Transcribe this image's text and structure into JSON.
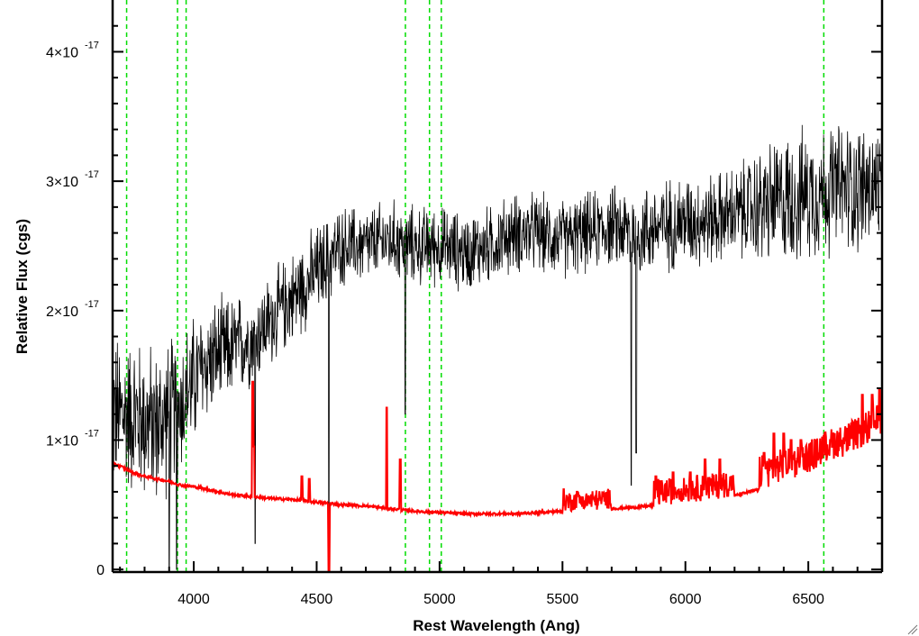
{
  "chart_data": {
    "type": "line",
    "title": "",
    "xlabel": "Rest Wavelength (Ang)",
    "ylabel": "Relative Flux (cgs)",
    "xlim": [
      3670,
      6800
    ],
    "ylim": [
      -2e-19,
      4.4e-17
    ],
    "x_ticks": [
      4000,
      4500,
      5000,
      5500,
      6000,
      6500
    ],
    "x_tick_labels": [
      "4000",
      "4500",
      "5000",
      "5500",
      "6000",
      "6500"
    ],
    "y_ticks": [
      0,
      1e-17,
      2e-17,
      3e-17,
      4e-17
    ],
    "y_tick_labels": [
      {
        "mantissa": "0",
        "exponent": ""
      },
      {
        "mantissa": "1×10",
        "exponent": "-17"
      },
      {
        "mantissa": "2×10",
        "exponent": "-17"
      },
      {
        "mantissa": "3×10",
        "exponent": "-17"
      },
      {
        "mantissa": "4×10",
        "exponent": "-17"
      }
    ],
    "reference_lines_x": [
      3727,
      3934,
      3969,
      4861,
      4959,
      5007,
      6563
    ],
    "series": [
      {
        "role": "spectrum",
        "color": "#000000",
        "x": [
          3680,
          3750,
          3850,
          3950,
          4050,
          4150,
          4250,
          4300,
          4400,
          4500,
          4600,
          4700,
          4800,
          4900,
          5000,
          5100,
          5200,
          5300,
          5400,
          5500,
          5600,
          5700,
          5800,
          5900,
          6000,
          6100,
          6200,
          6300,
          6400,
          6500,
          6600,
          6700,
          6800
        ],
        "y": [
          1.2e-17,
          1.2e-17,
          1.1e-17,
          1.3e-17,
          1.6e-17,
          1.7e-17,
          1.8e-17,
          1.9e-17,
          2.1e-17,
          2.3e-17,
          2.5e-17,
          2.5e-17,
          2.55e-17,
          2.5e-17,
          2.5e-17,
          2.45e-17,
          2.5e-17,
          2.6e-17,
          2.6e-17,
          2.55e-17,
          2.6e-17,
          2.65e-17,
          2.6e-17,
          2.65e-17,
          2.7e-17,
          2.7e-17,
          2.75e-17,
          2.8e-17,
          2.85e-17,
          2.9e-17,
          2.95e-17,
          2.95e-17,
          2.95e-17
        ],
        "noise": [
          6e-18,
          6e-18,
          6e-18,
          5.5e-18,
          4.5e-18,
          4e-18,
          3.5e-18,
          3.5e-18,
          3.5e-18,
          3.5e-18,
          3e-18,
          3e-18,
          3e-18,
          3e-18,
          3e-18,
          3e-18,
          3e-18,
          3e-18,
          3e-18,
          3e-18,
          3e-18,
          3e-18,
          3.5e-18,
          3.5e-18,
          3.5e-18,
          3.5e-18,
          3.5e-18,
          4.5e-18,
          5e-18,
          5e-18,
          5e-18,
          5e-18,
          5e-18
        ],
        "dips_x": [
          3900,
          3930,
          4250,
          4550,
          4860,
          5780,
          5800
        ],
        "dips_y": [
          0,
          0,
          2e-18,
          5e-19,
          1.2e-17,
          6.5e-18,
          9e-18
        ]
      },
      {
        "role": "error",
        "color": "#ff0000",
        "x": [
          3670,
          3700,
          3750,
          3800,
          3850,
          3900,
          3950,
          4000,
          4050,
          4100,
          4150,
          4200,
          4250,
          4300,
          4400,
          4500,
          4600,
          4700,
          4800,
          4900,
          5000,
          5100,
          5200,
          5300,
          5400,
          5500,
          5600,
          5700,
          5800,
          5900,
          6000,
          6100,
          6200,
          6300,
          6400,
          6500,
          6550,
          6600,
          6650,
          6700,
          6750,
          6800
        ],
        "y": [
          8.2e-18,
          8e-18,
          7.5e-18,
          7.2e-18,
          7e-18,
          6.8e-18,
          6.5e-18,
          6.4e-18,
          6.2e-18,
          6e-18,
          5.8e-18,
          5.7e-18,
          5.6e-18,
          5.5e-18,
          5.4e-18,
          5.2e-18,
          5e-18,
          4.9e-18,
          4.7e-18,
          4.5e-18,
          4.4e-18,
          4.3e-18,
          4.3e-18,
          4.3e-18,
          4.4e-18,
          4.5e-18,
          4.6e-18,
          4.7e-18,
          4.8e-18,
          5e-18,
          5.2e-18,
          5.4e-18,
          5.7e-18,
          6.2e-18,
          6.8e-18,
          7.4e-18,
          8e-18,
          8.5e-18,
          8.8e-18,
          9.2e-18,
          9.8e-18,
          1.05e-17
        ],
        "spikes_x": [
          4240,
          4245,
          4440,
          4470,
          4785,
          4840,
          5505,
          5560,
          5880,
          5950,
          6020,
          6080,
          6140,
          6320,
          6360,
          6400,
          6430,
          6470,
          6590,
          6720,
          6760,
          6790
        ],
        "spikes_y": [
          1.45e-17,
          9.5e-18,
          7.2e-18,
          7e-18,
          1.25e-17,
          8.5e-18,
          6.2e-18,
          6e-18,
          7.2e-18,
          7.5e-18,
          7.5e-18,
          8.5e-18,
          8.5e-18,
          9e-18,
          1.05e-17,
          1.05e-17,
          1e-17,
          1e-17,
          1e-17,
          1.35e-17,
          1.35e-17,
          1.4e-17
        ],
        "downspike_x": 4550,
        "downspike_y": -2e-19
      }
    ]
  }
}
